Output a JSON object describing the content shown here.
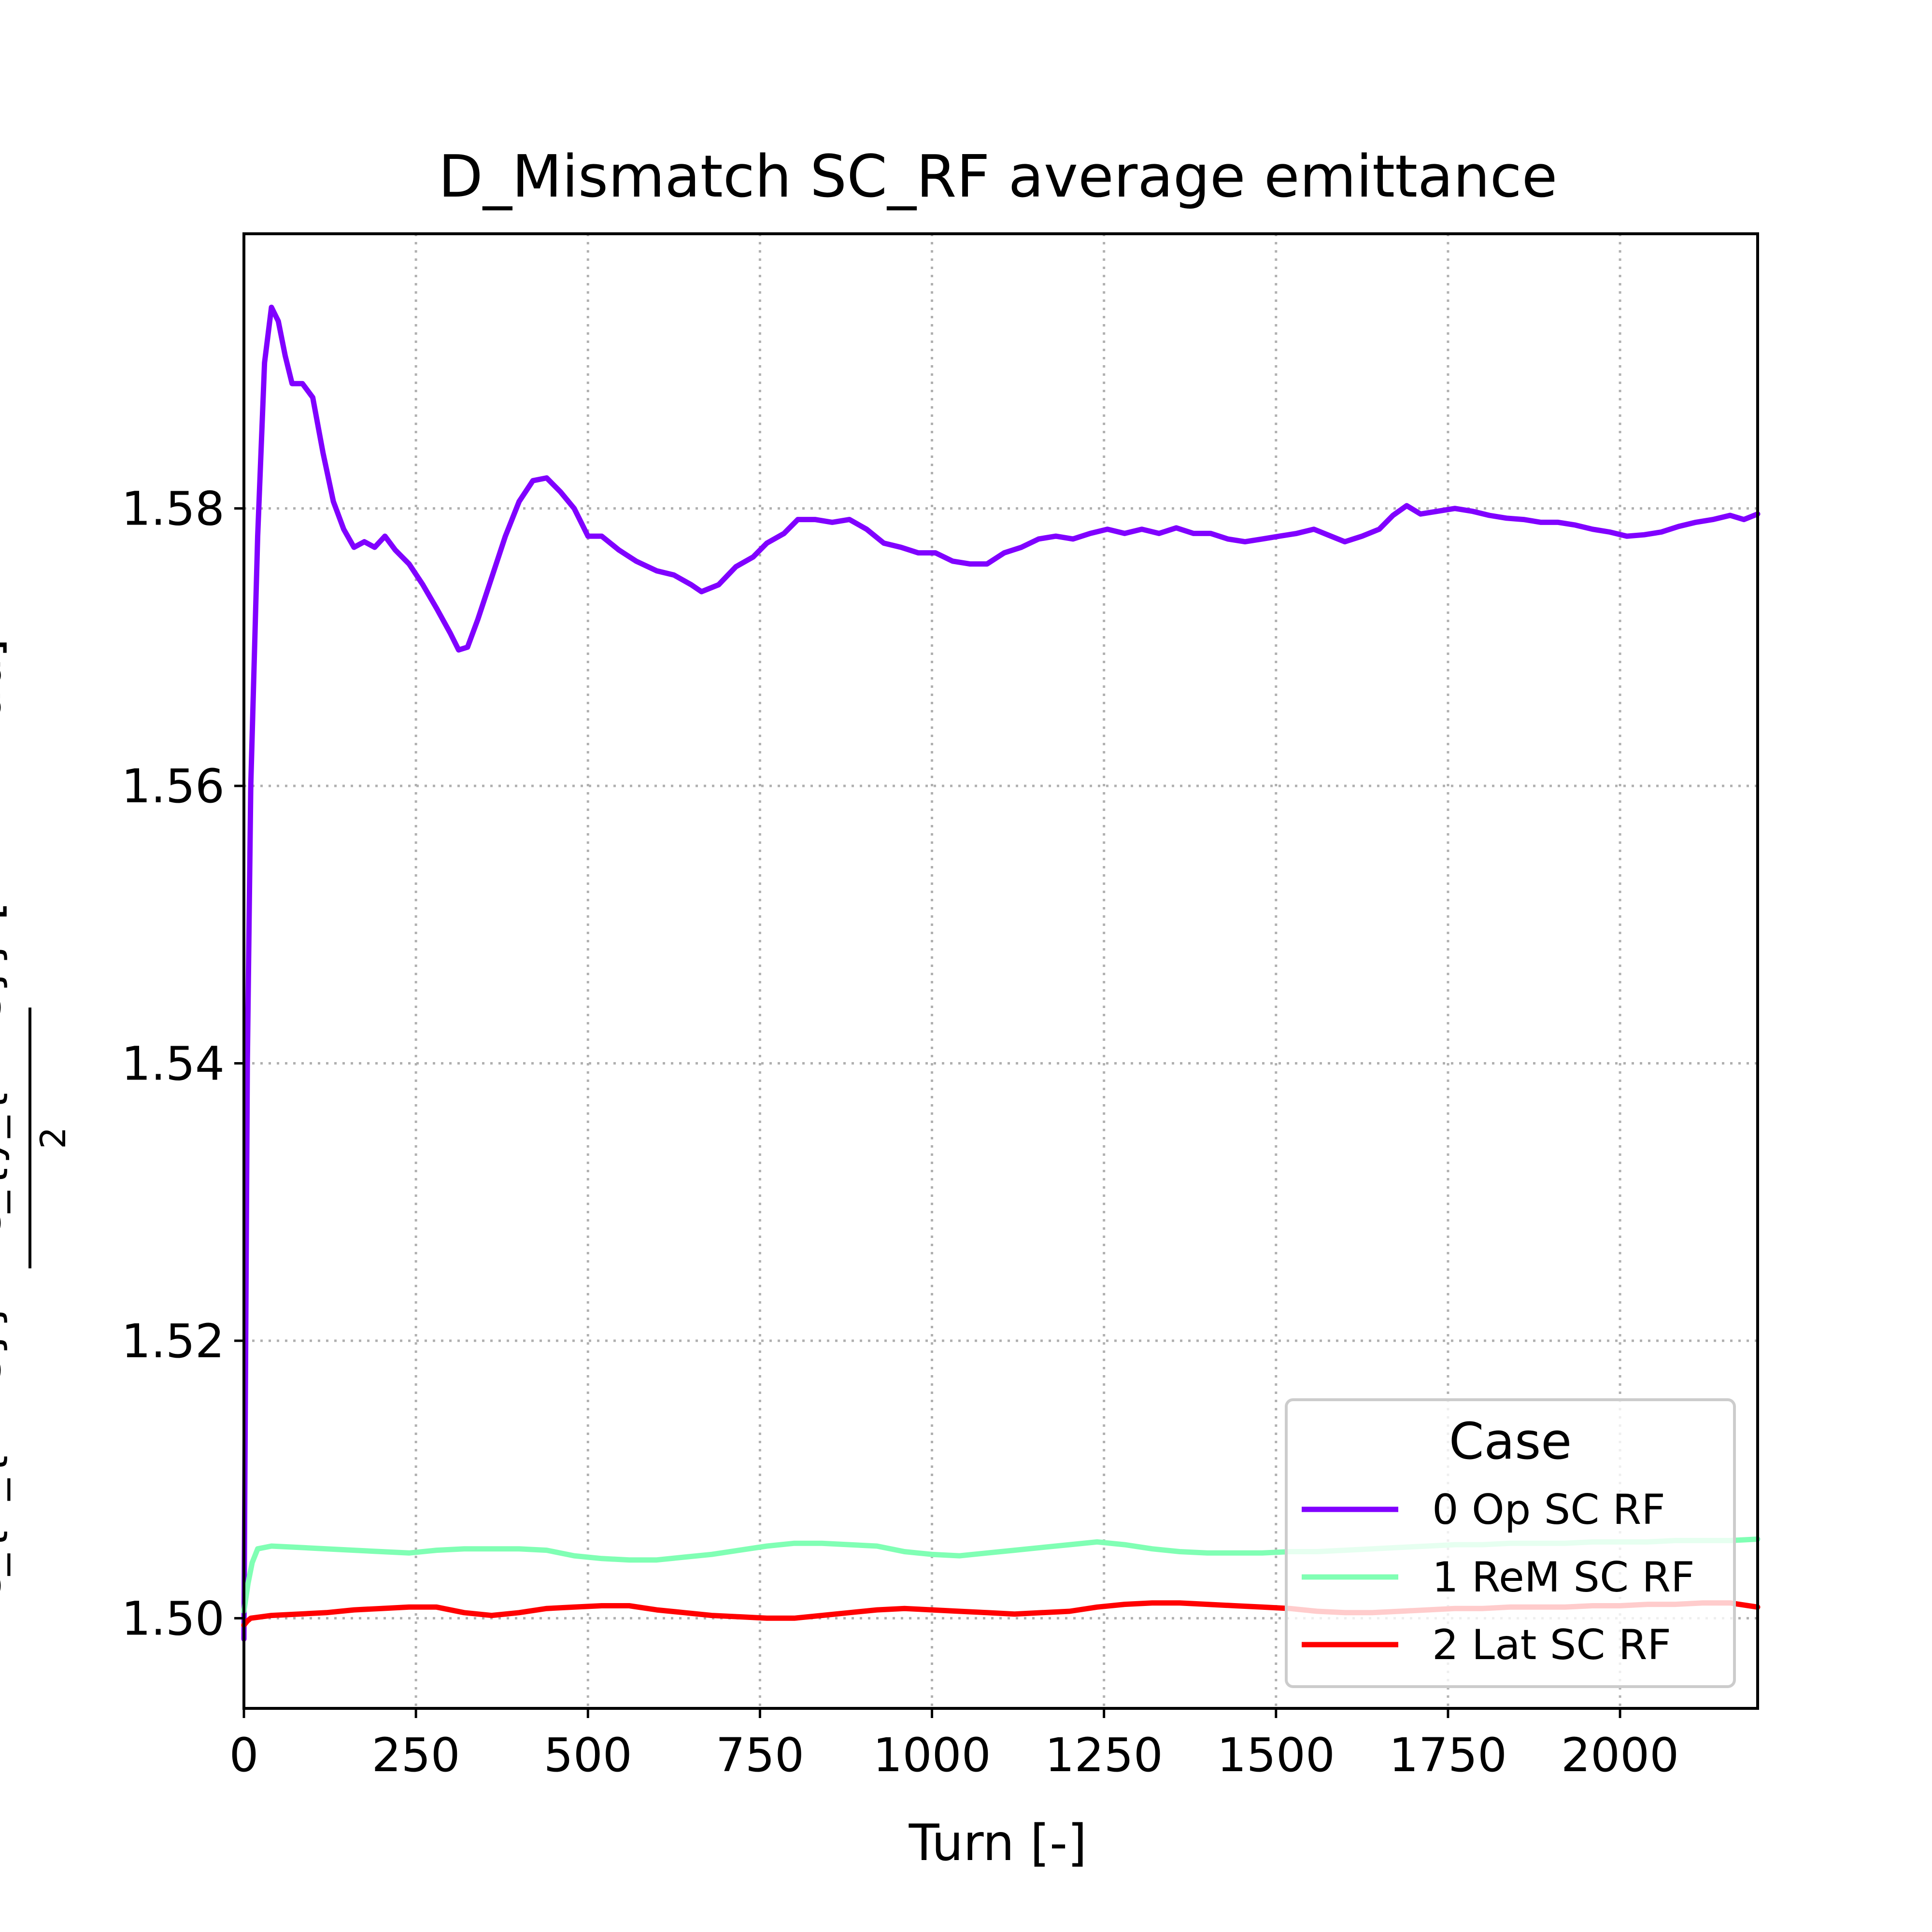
{
  "chart_data": {
    "type": "line",
    "title": "D_Mismatch SC_RF average emittance",
    "xlabel": "Turn [-]",
    "ylabel": {
      "numerator": "ε_{x_{RMS}} + ε_{y_{RMS}}",
      "denominator": "2",
      "unit": "[mm mrad]"
    },
    "xlim": [
      0,
      2200
    ],
    "ylim": [
      1.4935,
      1.5998
    ],
    "xticks": [
      0,
      250,
      500,
      750,
      1000,
      1250,
      1500,
      1750,
      2000
    ],
    "xtick_labels": [
      "0",
      "250",
      "500",
      "750",
      "1000",
      "1250",
      "1500",
      "1750",
      "2000"
    ],
    "yticks": [
      1.5,
      1.52,
      1.54,
      1.56,
      1.58
    ],
    "ytick_labels": [
      "1.50",
      "1.52",
      "1.54",
      "1.56",
      "1.58"
    ],
    "grid": true,
    "legend": {
      "title": "Case",
      "placement": "lower-right"
    },
    "series": [
      {
        "name": "0 Op SC RF",
        "color": "#8000ff",
        "points": [
          [
            0,
            1.4985
          ],
          [
            5,
            1.54
          ],
          [
            10,
            1.56
          ],
          [
            20,
            1.578
          ],
          [
            30,
            1.5905
          ],
          [
            40,
            1.5945
          ],
          [
            50,
            1.5935
          ],
          [
            60,
            1.591
          ],
          [
            70,
            1.589
          ],
          [
            85,
            1.589
          ],
          [
            100,
            1.588
          ],
          [
            115,
            1.584
          ],
          [
            130,
            1.5805
          ],
          [
            145,
            1.5785
          ],
          [
            160,
            1.5772
          ],
          [
            175,
            1.5776
          ],
          [
            190,
            1.5772
          ],
          [
            205,
            1.578
          ],
          [
            220,
            1.577
          ],
          [
            240,
            1.576
          ],
          [
            260,
            1.5745
          ],
          [
            280,
            1.5728
          ],
          [
            300,
            1.571
          ],
          [
            312,
            1.5698
          ],
          [
            325,
            1.57
          ],
          [
            340,
            1.572
          ],
          [
            360,
            1.575
          ],
          [
            380,
            1.578
          ],
          [
            400,
            1.5805
          ],
          [
            420,
            1.582
          ],
          [
            440,
            1.5822
          ],
          [
            460,
            1.5812
          ],
          [
            480,
            1.58
          ],
          [
            500,
            1.578
          ],
          [
            520,
            1.578
          ],
          [
            545,
            1.577
          ],
          [
            570,
            1.5762
          ],
          [
            600,
            1.5755
          ],
          [
            625,
            1.5752
          ],
          [
            650,
            1.5745
          ],
          [
            665,
            1.574
          ],
          [
            690,
            1.5745
          ],
          [
            715,
            1.5758
          ],
          [
            740,
            1.5765
          ],
          [
            760,
            1.5775
          ],
          [
            785,
            1.5782
          ],
          [
            805,
            1.5792
          ],
          [
            830,
            1.5792
          ],
          [
            855,
            1.579
          ],
          [
            880,
            1.5792
          ],
          [
            905,
            1.5785
          ],
          [
            930,
            1.5775
          ],
          [
            955,
            1.5772
          ],
          [
            980,
            1.5768
          ],
          [
            1005,
            1.5768
          ],
          [
            1030,
            1.5762
          ],
          [
            1055,
            1.576
          ],
          [
            1080,
            1.576
          ],
          [
            1105,
            1.5768
          ],
          [
            1130,
            1.5772
          ],
          [
            1155,
            1.5778
          ],
          [
            1180,
            1.578
          ],
          [
            1205,
            1.5778
          ],
          [
            1230,
            1.5782
          ],
          [
            1255,
            1.5785
          ],
          [
            1280,
            1.5782
          ],
          [
            1305,
            1.5785
          ],
          [
            1330,
            1.5782
          ],
          [
            1355,
            1.5786
          ],
          [
            1380,
            1.5782
          ],
          [
            1405,
            1.5782
          ],
          [
            1430,
            1.5778
          ],
          [
            1455,
            1.5776
          ],
          [
            1480,
            1.5778
          ],
          [
            1505,
            1.578
          ],
          [
            1530,
            1.5782
          ],
          [
            1555,
            1.5785
          ],
          [
            1580,
            1.578
          ],
          [
            1600,
            1.5776
          ],
          [
            1625,
            1.578
          ],
          [
            1650,
            1.5785
          ],
          [
            1670,
            1.5795
          ],
          [
            1690,
            1.5802
          ],
          [
            1710,
            1.5796
          ],
          [
            1735,
            1.5798
          ],
          [
            1760,
            1.58
          ],
          [
            1785,
            1.5798
          ],
          [
            1810,
            1.5795
          ],
          [
            1835,
            1.5793
          ],
          [
            1860,
            1.5792
          ],
          [
            1885,
            1.579
          ],
          [
            1910,
            1.579
          ],
          [
            1935,
            1.5788
          ],
          [
            1960,
            1.5785
          ],
          [
            1985,
            1.5783
          ],
          [
            2010,
            1.578
          ],
          [
            2035,
            1.5781
          ],
          [
            2060,
            1.5783
          ],
          [
            2085,
            1.5787
          ],
          [
            2110,
            1.579
          ],
          [
            2135,
            1.5792
          ],
          [
            2160,
            1.5795
          ],
          [
            2180,
            1.5792
          ],
          [
            2200,
            1.5796
          ]
        ]
      },
      {
        "name": "1 ReM SC RF",
        "color": "#80ffb4",
        "points": [
          [
            0,
            1.5005
          ],
          [
            6,
            1.5025
          ],
          [
            12,
            1.504
          ],
          [
            20,
            1.505
          ],
          [
            40,
            1.5052
          ],
          [
            80,
            1.5051
          ],
          [
            120,
            1.505
          ],
          [
            160,
            1.5049
          ],
          [
            200,
            1.5048
          ],
          [
            240,
            1.5047
          ],
          [
            280,
            1.5049
          ],
          [
            320,
            1.505
          ],
          [
            360,
            1.505
          ],
          [
            400,
            1.505
          ],
          [
            440,
            1.5049
          ],
          [
            480,
            1.5045
          ],
          [
            520,
            1.5043
          ],
          [
            560,
            1.5042
          ],
          [
            600,
            1.5042
          ],
          [
            640,
            1.5044
          ],
          [
            680,
            1.5046
          ],
          [
            720,
            1.5049
          ],
          [
            760,
            1.5052
          ],
          [
            800,
            1.5054
          ],
          [
            840,
            1.5054
          ],
          [
            880,
            1.5053
          ],
          [
            920,
            1.5052
          ],
          [
            960,
            1.5048
          ],
          [
            1000,
            1.5046
          ],
          [
            1040,
            1.5045
          ],
          [
            1080,
            1.5047
          ],
          [
            1120,
            1.5049
          ],
          [
            1160,
            1.5051
          ],
          [
            1200,
            1.5053
          ],
          [
            1240,
            1.5055
          ],
          [
            1280,
            1.5053
          ],
          [
            1320,
            1.505
          ],
          [
            1360,
            1.5048
          ],
          [
            1400,
            1.5047
          ],
          [
            1440,
            1.5047
          ],
          [
            1480,
            1.5047
          ],
          [
            1520,
            1.5048
          ],
          [
            1560,
            1.5048
          ],
          [
            1600,
            1.5049
          ],
          [
            1640,
            1.505
          ],
          [
            1680,
            1.5051
          ],
          [
            1720,
            1.5052
          ],
          [
            1760,
            1.5053
          ],
          [
            1800,
            1.5053
          ],
          [
            1840,
            1.5054
          ],
          [
            1880,
            1.5054
          ],
          [
            1920,
            1.5054
          ],
          [
            1960,
            1.5055
          ],
          [
            2000,
            1.5055
          ],
          [
            2040,
            1.5055
          ],
          [
            2080,
            1.5056
          ],
          [
            2120,
            1.5056
          ],
          [
            2160,
            1.5056
          ],
          [
            2200,
            1.5057
          ]
        ]
      },
      {
        "name": "2 Lat SC RF",
        "color": "#ff0000",
        "points": [
          [
            0,
            1.4995
          ],
          [
            5,
            1.4998
          ],
          [
            10,
            1.5
          ],
          [
            40,
            1.5002
          ],
          [
            80,
            1.5003
          ],
          [
            120,
            1.5004
          ],
          [
            160,
            1.5006
          ],
          [
            200,
            1.5007
          ],
          [
            240,
            1.5008
          ],
          [
            280,
            1.5008
          ],
          [
            320,
            1.5004
          ],
          [
            360,
            1.5002
          ],
          [
            400,
            1.5004
          ],
          [
            440,
            1.5007
          ],
          [
            480,
            1.5008
          ],
          [
            520,
            1.5009
          ],
          [
            560,
            1.5009
          ],
          [
            600,
            1.5006
          ],
          [
            640,
            1.5004
          ],
          [
            680,
            1.5002
          ],
          [
            720,
            1.5001
          ],
          [
            760,
            1.5
          ],
          [
            800,
            1.5
          ],
          [
            840,
            1.5002
          ],
          [
            880,
            1.5004
          ],
          [
            920,
            1.5006
          ],
          [
            960,
            1.5007
          ],
          [
            1000,
            1.5006
          ],
          [
            1040,
            1.5005
          ],
          [
            1080,
            1.5004
          ],
          [
            1120,
            1.5003
          ],
          [
            1160,
            1.5004
          ],
          [
            1200,
            1.5005
          ],
          [
            1240,
            1.5008
          ],
          [
            1280,
            1.501
          ],
          [
            1320,
            1.5011
          ],
          [
            1360,
            1.5011
          ],
          [
            1400,
            1.501
          ],
          [
            1440,
            1.5009
          ],
          [
            1480,
            1.5008
          ],
          [
            1520,
            1.5007
          ],
          [
            1560,
            1.5005
          ],
          [
            1600,
            1.5004
          ],
          [
            1640,
            1.5004
          ],
          [
            1680,
            1.5005
          ],
          [
            1720,
            1.5006
          ],
          [
            1760,
            1.5007
          ],
          [
            1800,
            1.5007
          ],
          [
            1840,
            1.5008
          ],
          [
            1880,
            1.5008
          ],
          [
            1920,
            1.5008
          ],
          [
            1960,
            1.5009
          ],
          [
            2000,
            1.5009
          ],
          [
            2040,
            1.501
          ],
          [
            2080,
            1.501
          ],
          [
            2120,
            1.5011
          ],
          [
            2160,
            1.5011
          ],
          [
            2200,
            1.5008
          ]
        ]
      }
    ]
  }
}
